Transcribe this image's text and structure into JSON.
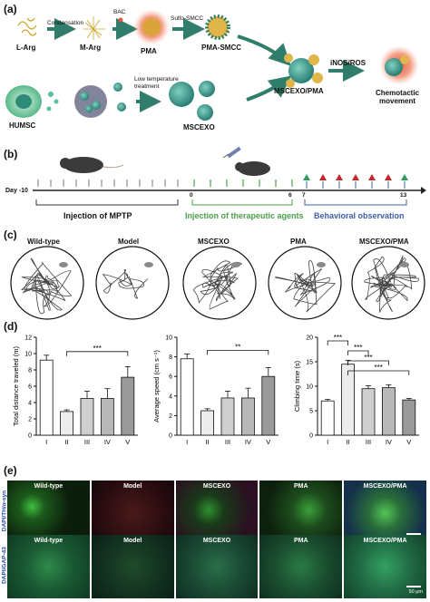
{
  "panel_labels": {
    "a": "(a)",
    "b": "(b)",
    "c": "(c)",
    "d": "(d)",
    "e": "(e)"
  },
  "panel_a": {
    "larg": "L-Arg",
    "marg": "M-Arg",
    "pma": "PMA",
    "pma_smcc": "PMA-SMCC",
    "condensation": "Condensation",
    "bac": "BAC",
    "sulfo_smcc": "Sulfo-SMCC",
    "humsc": "HUMSC",
    "mscexo": "MSCEXO",
    "low_temp": "Low temperature\ntreatment",
    "mscexo_pma": "MSCEXO/PMA",
    "inos": "iNOS/ROS",
    "chemotactic": "Chemotactic\nmovement"
  },
  "panel_b": {
    "day_label": "Day",
    "day_neg10": "-10",
    "day_0": "0",
    "day_6": "6",
    "day_7": "7",
    "day_13": "13",
    "injection_mptp": "Injection of MPTP",
    "injection_agents": "Injection of therapeutic agents",
    "behavioral": "Behavioral observation"
  },
  "panel_c": {
    "groups": [
      "Wild-type",
      "Model",
      "MSCEXO",
      "PMA",
      "MSCEXO/PMA"
    ]
  },
  "chart_data": [
    {
      "type": "bar",
      "categories": [
        "I",
        "II",
        "III",
        "IV",
        "V"
      ],
      "values": [
        9.2,
        2.9,
        4.5,
        4.5,
        7.1
      ],
      "errors": [
        0.6,
        0.2,
        0.9,
        1.2,
        1.3
      ],
      "ylabel": "Total distance traveled (m)",
      "ylim": [
        0,
        12
      ],
      "yticks": [
        "0",
        "2",
        "4",
        "6",
        "8",
        "10",
        "12"
      ],
      "significance": [
        {
          "from": "II",
          "to": "V",
          "label": "***"
        }
      ],
      "colors": [
        "#ffffff",
        "#ececec",
        "#cfcfcf",
        "#b8b8b8",
        "#9a9a9a"
      ]
    },
    {
      "type": "bar",
      "categories": [
        "I",
        "II",
        "III",
        "IV",
        "V"
      ],
      "values": [
        7.8,
        2.5,
        3.8,
        3.8,
        6.0
      ],
      "errors": [
        0.5,
        0.2,
        0.7,
        1.0,
        0.9
      ],
      "ylabel": "Average speed (cm s⁻¹)",
      "ylim": [
        0,
        10
      ],
      "yticks": [
        "0",
        "2",
        "4",
        "6",
        "8",
        "10"
      ],
      "significance": [
        {
          "from": "II",
          "to": "V",
          "label": "**"
        }
      ],
      "colors": [
        "#ffffff",
        "#ececec",
        "#cfcfcf",
        "#b8b8b8",
        "#9a9a9a"
      ]
    },
    {
      "type": "bar",
      "categories": [
        "I",
        "II",
        "III",
        "IV",
        "V"
      ],
      "values": [
        7.0,
        14.5,
        9.5,
        9.7,
        7.2
      ],
      "errors": [
        0.3,
        0.8,
        0.6,
        0.6,
        0.3
      ],
      "ylabel": "Climbing time (s)",
      "ylim": [
        0,
        20
      ],
      "yticks": [
        "0",
        "5",
        "10",
        "15",
        "20"
      ],
      "significance": [
        {
          "from": "I",
          "to": "II",
          "label": "***"
        },
        {
          "from": "II",
          "to": "III",
          "label": "***"
        },
        {
          "from": "II",
          "to": "IV",
          "label": "***"
        },
        {
          "from": "II",
          "to": "V",
          "label": "***"
        }
      ],
      "colors": [
        "#ffffff",
        "#ececec",
        "#cfcfcf",
        "#b8b8b8",
        "#9a9a9a"
      ]
    }
  ],
  "panel_e": {
    "row1_axis": "DAPI/TH/α-syn",
    "row2_axis": "DAPI/GAP-43",
    "groups": [
      "Wild-type",
      "Model",
      "MSCEXO",
      "PMA",
      "MSCEXO/PMA"
    ],
    "scale": "50 μm"
  },
  "colors": {
    "arrow": "#2f7d6a",
    "green_line": "#4aa04a",
    "blue_line": "#3c5fa8",
    "red_marker": "#c0272d",
    "green_marker": "#2a9d5c"
  }
}
